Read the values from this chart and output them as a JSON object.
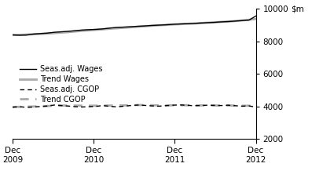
{
  "ylim": [
    2000,
    10000
  ],
  "yticks": [
    2000,
    4000,
    6000,
    8000,
    10000
  ],
  "xtick_positions": [
    0,
    12,
    24,
    36
  ],
  "xtick_labels_line1": [
    "Dec",
    "Dec",
    "Dec",
    "Dec"
  ],
  "xtick_labels_line2": [
    "2009",
    "2010",
    "2011",
    "2012"
  ],
  "seas_wages": [
    8400,
    8380,
    8390,
    8450,
    8480,
    8510,
    8560,
    8590,
    8620,
    8660,
    8700,
    8720,
    8740,
    8770,
    8820,
    8860,
    8880,
    8900,
    8930,
    8950,
    8980,
    9000,
    9020,
    9050,
    9070,
    9090,
    9100,
    9130,
    9150,
    9170,
    9200,
    9220,
    9250,
    9280,
    9310,
    9560
  ],
  "trend_wages": [
    8390,
    8400,
    8420,
    8440,
    8460,
    8480,
    8510,
    8540,
    8570,
    8610,
    8650,
    8680,
    8710,
    8740,
    8780,
    8810,
    8840,
    8870,
    8900,
    8930,
    8960,
    8990,
    9010,
    9040,
    9060,
    9080,
    9100,
    9120,
    9150,
    9170,
    9200,
    9220,
    9250,
    9290,
    9330,
    9380
  ],
  "seas_cgop": [
    3950,
    3980,
    3940,
    3960,
    3990,
    4020,
    4080,
    4050,
    4020,
    3980,
    3960,
    3980,
    4000,
    4050,
    4000,
    3970,
    4010,
    4050,
    4080,
    4060,
    4030,
    4010,
    4040,
    4070,
    4090,
    4070,
    4040,
    4050,
    4070,
    4060,
    4050,
    4070,
    4040,
    4010,
    4030,
    3950
  ],
  "trend_cgop": [
    3960,
    3970,
    3980,
    3990,
    4010,
    4020,
    4040,
    4050,
    4050,
    4050,
    4040,
    4040,
    4040,
    4050,
    4050,
    4050,
    4060,
    4070,
    4080,
    4080,
    4070,
    4060,
    4060,
    4065,
    4070,
    4070,
    4065,
    4060,
    4060,
    4055,
    4050,
    4055,
    4050,
    4040,
    4040,
    4030
  ],
  "color_black": "#000000",
  "color_gray": "#aaaaaa",
  "legend_fontsize": 7,
  "axis_fontsize": 7.5
}
